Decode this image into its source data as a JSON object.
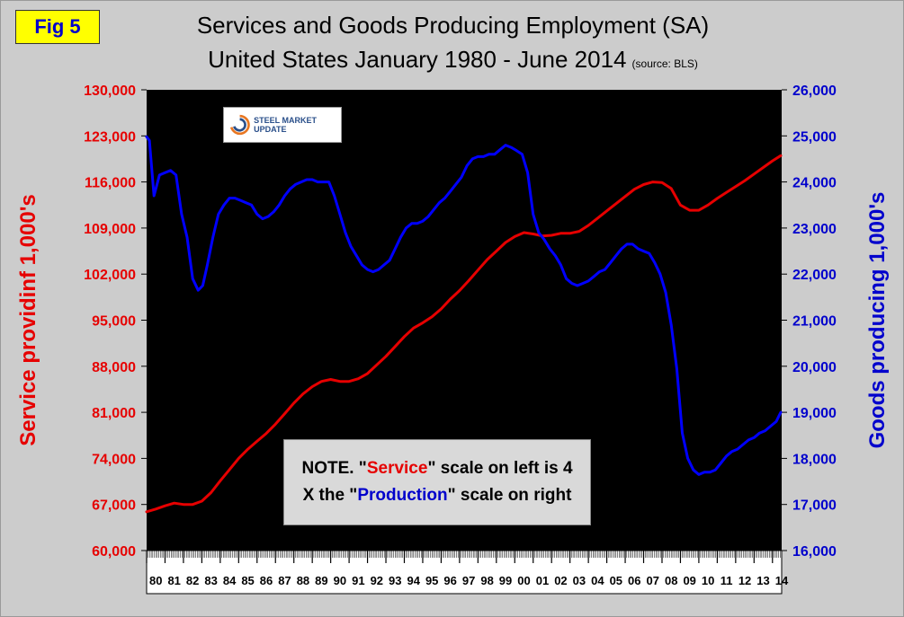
{
  "fig_label": "Fig 5",
  "title_line1": "Services and Goods Producing Employment (SA)",
  "title_line2": "United States January 1980 - June 2014",
  "source_note": "(source: BLS)",
  "logo_text": "STEEL MARKET UPDATE",
  "note": {
    "part1": "NOTE. \"",
    "service_word": "Service",
    "part2": "\" scale on left  is 4",
    "part3": "X the \"",
    "production_word": "Production",
    "part4": "\" scale on right"
  },
  "colors": {
    "service": "#e60000",
    "goods": "#0000ff",
    "plot_bg": "#000000",
    "panel_bg": "#cccccc"
  },
  "chart_data": {
    "type": "line",
    "title": "Services and Goods Producing Employment (SA)",
    "subtitle": "United States January 1980 - June 2014",
    "categories": [
      "80",
      "81",
      "82",
      "83",
      "84",
      "85",
      "86",
      "87",
      "88",
      "89",
      "90",
      "91",
      "92",
      "93",
      "94",
      "95",
      "96",
      "97",
      "98",
      "99",
      "00",
      "01",
      "02",
      "03",
      "04",
      "05",
      "06",
      "07",
      "08",
      "09",
      "10",
      "11",
      "12",
      "13",
      "14"
    ],
    "y_left": {
      "label": "Service providinf 1,000's",
      "ticks": [
        60000,
        67000,
        74000,
        81000,
        88000,
        95000,
        102000,
        109000,
        116000,
        123000,
        130000
      ],
      "range": [
        60000,
        130000
      ]
    },
    "y_right": {
      "label": "Goods producing 1,000's",
      "ticks": [
        16000,
        17000,
        18000,
        19000,
        20000,
        21000,
        22000,
        23000,
        24000,
        25000,
        26000
      ],
      "range": [
        16000,
        26000
      ]
    },
    "grid": false,
    "series": [
      {
        "axis": "left",
        "x": [
          1980,
          1980.5,
          1981,
          1981.5,
          1982,
          1982.5,
          1983,
          1983.5,
          1984,
          1984.5,
          1985,
          1985.5,
          1986,
          1986.5,
          1987,
          1987.5,
          1988,
          1988.5,
          1989,
          1989.5,
          1990,
          1990.5,
          1991,
          1991.5,
          1992,
          1992.5,
          1993,
          1993.5,
          1994,
          1994.5,
          1995,
          1995.5,
          1996,
          1996.5,
          1997,
          1997.5,
          1998,
          1998.5,
          1999,
          1999.5,
          2000,
          2000.5,
          2001,
          2001.5,
          2002,
          2002.5,
          2003,
          2003.5,
          2004,
          2004.5,
          2005,
          2005.5,
          2006,
          2006.5,
          2007,
          2007.5,
          2008,
          2008.5,
          2009,
          2009.5,
          2010,
          2010.5,
          2011,
          2011.5,
          2012,
          2012.5,
          2013,
          2013.5,
          2014,
          2014.45
        ],
        "values": [
          65900,
          66300,
          66800,
          67200,
          67000,
          67000,
          67500,
          68800,
          70600,
          72300,
          74000,
          75400,
          76600,
          77800,
          79200,
          80800,
          82400,
          83800,
          84900,
          85700,
          86000,
          85700,
          85700,
          86100,
          86900,
          88200,
          89500,
          91000,
          92500,
          93800,
          94600,
          95500,
          96700,
          98200,
          99500,
          101000,
          102600,
          104200,
          105500,
          106800,
          107700,
          108300,
          108100,
          107800,
          107900,
          108200,
          108200,
          108500,
          109400,
          110500,
          111600,
          112700,
          113800,
          114900,
          115600,
          116000,
          115900,
          115000,
          112500,
          111700,
          111700,
          112500,
          113500,
          114400,
          115300,
          116200,
          117200,
          118200,
          119200,
          120000
        ]
      },
      {
        "axis": "right",
        "x": [
          1980,
          1980.15,
          1980.4,
          1980.7,
          1981,
          1981.3,
          1981.6,
          1981.9,
          1982.2,
          1982.5,
          1982.8,
          1983.05,
          1983.3,
          1983.6,
          1983.9,
          1984.2,
          1984.5,
          1984.8,
          1985.1,
          1985.4,
          1985.7,
          1986,
          1986.3,
          1986.6,
          1986.9,
          1987.2,
          1987.5,
          1987.8,
          1988.1,
          1988.4,
          1988.7,
          1989,
          1989.3,
          1989.6,
          1989.9,
          1990.2,
          1990.5,
          1990.8,
          1991.1,
          1991.4,
          1991.7,
          1992,
          1992.3,
          1992.6,
          1992.9,
          1993.2,
          1993.5,
          1993.8,
          1994.1,
          1994.4,
          1994.7,
          1995,
          1995.3,
          1995.6,
          1995.9,
          1996.2,
          1996.5,
          1996.8,
          1997.1,
          1997.4,
          1997.7,
          1998,
          1998.3,
          1998.6,
          1998.9,
          1999.2,
          1999.5,
          1999.8,
          2000.1,
          2000.4,
          2000.7,
          2001,
          2001.3,
          2001.6,
          2001.9,
          2002.2,
          2002.5,
          2002.8,
          2003.1,
          2003.4,
          2003.7,
          2004,
          2004.3,
          2004.6,
          2004.9,
          2005.2,
          2005.5,
          2005.8,
          2006.1,
          2006.4,
          2006.7,
          2007,
          2007.3,
          2007.6,
          2007.9,
          2008.2,
          2008.5,
          2008.8,
          2009.1,
          2009.4,
          2009.7,
          2010,
          2010.3,
          2010.6,
          2010.9,
          2011.2,
          2011.5,
          2011.8,
          2012.1,
          2012.4,
          2012.7,
          2013,
          2013.3,
          2013.6,
          2013.9,
          2014.2,
          2014.45
        ],
        "values": [
          24980,
          24900,
          23700,
          24150,
          24200,
          24250,
          24150,
          23300,
          22800,
          21900,
          21650,
          21750,
          22200,
          22800,
          23300,
          23500,
          23650,
          23650,
          23600,
          23550,
          23500,
          23300,
          23200,
          23250,
          23350,
          23500,
          23700,
          23850,
          23950,
          24000,
          24050,
          24050,
          24000,
          24000,
          24000,
          23700,
          23300,
          22900,
          22600,
          22400,
          22200,
          22100,
          22050,
          22100,
          22200,
          22300,
          22550,
          22800,
          23000,
          23100,
          23100,
          23150,
          23250,
          23400,
          23550,
          23650,
          23800,
          23950,
          24100,
          24350,
          24500,
          24550,
          24550,
          24600,
          24600,
          24700,
          24800,
          24750,
          24680,
          24600,
          24200,
          23300,
          22900,
          22750,
          22550,
          22400,
          22200,
          21900,
          21800,
          21750,
          21800,
          21850,
          21950,
          22050,
          22100,
          22250,
          22400,
          22550,
          22650,
          22650,
          22550,
          22500,
          22450,
          22250,
          22000,
          21600,
          20900,
          19950,
          18550,
          18000,
          17750,
          17650,
          17700,
          17700,
          17750,
          17900,
          18050,
          18150,
          18200,
          18300,
          18400,
          18450,
          18550,
          18600,
          18700,
          18800,
          19000
        ]
      }
    ]
  }
}
